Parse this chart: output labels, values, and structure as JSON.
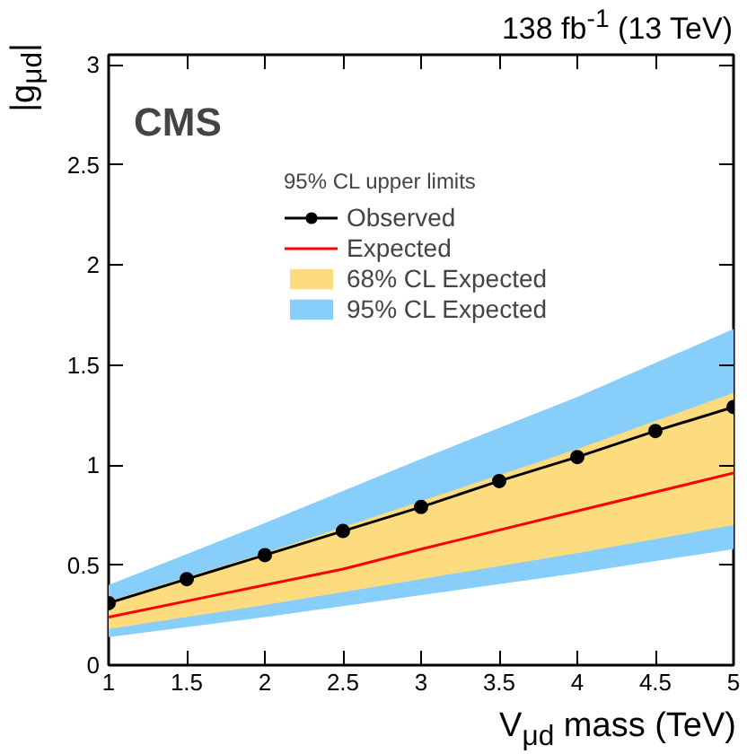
{
  "chart_data": {
    "type": "line",
    "title": "138 fb$^{-1}$ (13 TeV)",
    "xlabel": "V$_{μd}$ mass (TeV)",
    "ylabel": "|g$_{μd}$|",
    "legend_title": "95% CL upper limits",
    "annotations": [
      "CMS"
    ],
    "x": [
      1,
      1.5,
      2,
      2.5,
      3,
      3.5,
      4,
      4.5,
      5
    ],
    "series": [
      {
        "name": "Observed",
        "marker": "circle",
        "color": "#000000",
        "values": [
          0.31,
          0.43,
          0.55,
          0.67,
          0.79,
          0.92,
          1.04,
          1.17,
          1.29
        ]
      },
      {
        "name": "Expected",
        "marker": "none",
        "color": "#ff0000",
        "x": [
          1,
          2,
          2.5,
          3,
          4,
          5
        ],
        "values": [
          0.24,
          0.4,
          0.48,
          0.58,
          0.77,
          0.96
        ]
      },
      {
        "name": "68% CL Expected",
        "type": "area",
        "color": "#fddc80",
        "x": [
          1,
          2,
          3,
          4,
          5
        ],
        "values": [
          null,
          null,
          null,
          null,
          null
        ],
        "lower": [
          0.18,
          0.3,
          0.43,
          0.56,
          0.7
        ],
        "upper": [
          0.32,
          0.56,
          0.82,
          1.08,
          1.36
        ]
      },
      {
        "name": "95% CL Expected",
        "type": "area",
        "color": "#87cefa",
        "x": [
          1,
          2,
          3,
          4,
          5
        ],
        "values": [
          null,
          null,
          null,
          null,
          null
        ],
        "lower": [
          0.14,
          0.24,
          0.35,
          0.46,
          0.58
        ],
        "upper": [
          0.4,
          0.71,
          1.03,
          1.34,
          1.68
        ]
      }
    ],
    "xlim": [
      1,
      5
    ],
    "ylim": [
      0,
      3.05
    ],
    "xticks": [
      1,
      1.5,
      2,
      2.5,
      3,
      3.5,
      4,
      4.5,
      5
    ],
    "yticks": [
      0,
      0.5,
      1,
      1.5,
      2,
      2.5,
      3
    ],
    "grid": false,
    "legend": "top left"
  }
}
